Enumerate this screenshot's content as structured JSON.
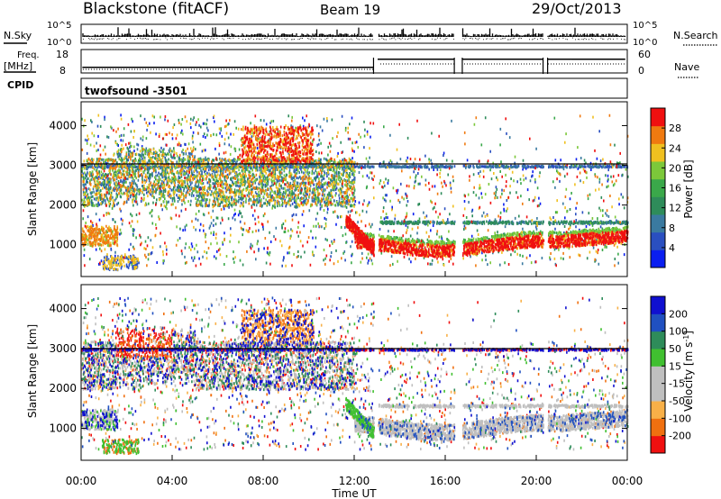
{
  "header": {
    "station": "Blackstone (fitACF)",
    "beam": "Beam 19",
    "date": "29/Oct/2013"
  },
  "left_labels": {
    "nsky": "N.Sky",
    "freq_line1": "Freq.",
    "freq_line2": "[MHz]",
    "cpid": "CPID"
  },
  "right_labels": {
    "nsearch": "N.Search",
    "nave": "Nave"
  },
  "strips": {
    "noise_ticks_left": [
      "10^5",
      "10^0"
    ],
    "noise_ticks_right": [
      "10^5",
      "10^0"
    ],
    "freq_ticks_left": [
      "18",
      "8"
    ],
    "nave_ticks_right": [
      "60",
      "0"
    ],
    "cpid_text": "twofsound -3501"
  },
  "colors": {
    "power_scale": [
      "#0a1ef0",
      "#2a4fc0",
      "#3a7aa0",
      "#2e8c5a",
      "#3aa84a",
      "#7cc83a",
      "#f0c020",
      "#f07a10",
      "#f01010"
    ],
    "velocity_scale": [
      "#f01010",
      "#f07010",
      "#f8b048",
      "#bfbfbf",
      "#bfbfbf",
      "#40c030",
      "#2e8c5a",
      "#2050c0",
      "#1010d0"
    ]
  },
  "chart_data": [
    {
      "type": "heatmap",
      "name": "power",
      "ylabel": "Slant Range [km]",
      "yticks": [
        "1000",
        "2000",
        "3000",
        "4000"
      ],
      "ylim": [
        200,
        4600
      ],
      "colorbar_label": "Power [dB]",
      "colorbar_ticks": [
        "4",
        "8",
        "12",
        "16",
        "20",
        "24",
        "28"
      ],
      "colorbar_range": [
        0,
        32
      ]
    },
    {
      "type": "heatmap",
      "name": "velocity",
      "ylabel": "Slant Range [km]",
      "yticks": [
        "1000",
        "2000",
        "3000",
        "4000"
      ],
      "ylim": [
        200,
        4600
      ],
      "colorbar_label": "Velocity [m s",
      "colorbar_label_sup": "-1",
      "colorbar_label_end": "]",
      "colorbar_ticks": [
        "-200",
        "-100",
        "-50",
        "-15",
        "15",
        "50",
        "100",
        "200"
      ]
    }
  ],
  "xaxis": {
    "label": "Time UT",
    "ticks": [
      "00:00",
      "04:00",
      "08:00",
      "12:00",
      "16:00",
      "20:00",
      "00:00"
    ],
    "hours": [
      0,
      4,
      8,
      12,
      16,
      20,
      24
    ]
  }
}
